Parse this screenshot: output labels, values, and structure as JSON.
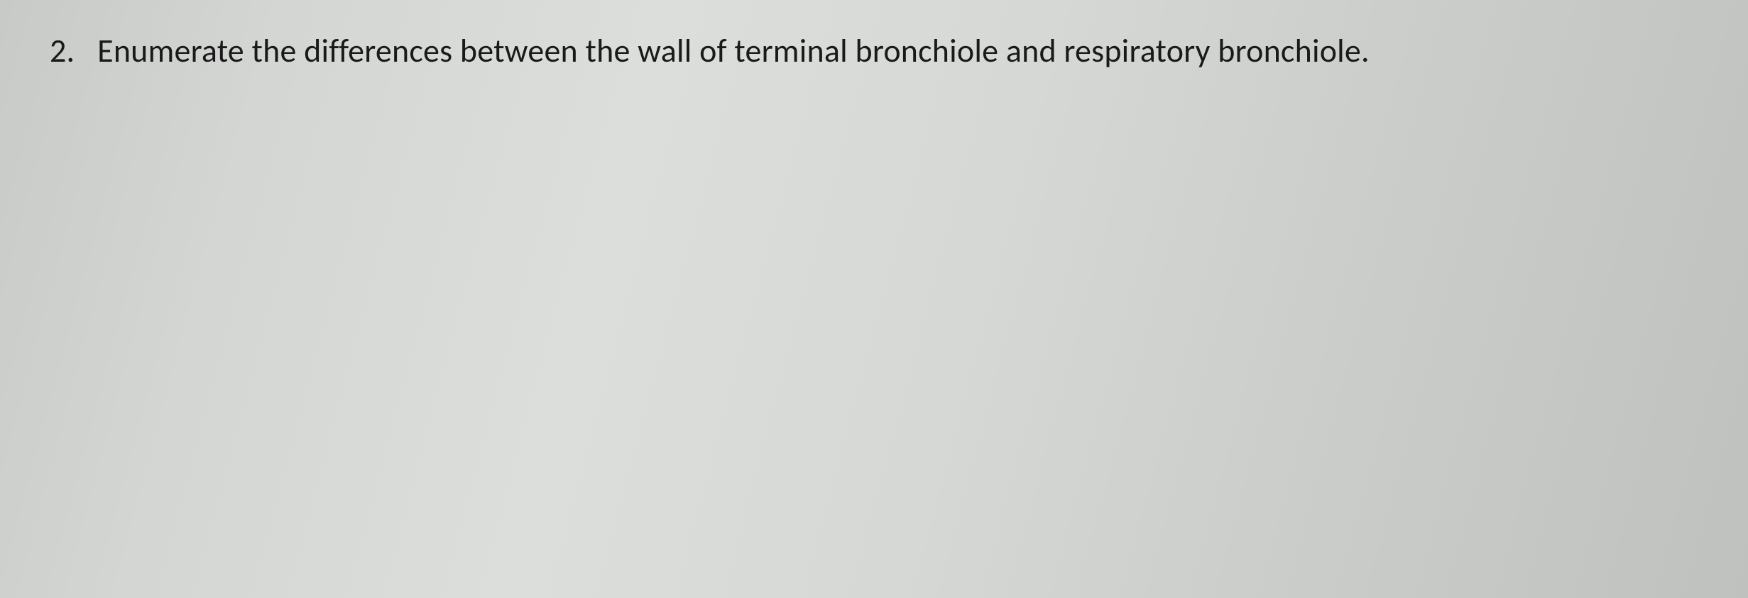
{
  "document": {
    "background_gradient": [
      "#c8cac8",
      "#d4d6d4",
      "#dcdedc",
      "#d6d8d6",
      "#cbcdcb",
      "#bfc1bf"
    ],
    "text_color": "#1a1a1a",
    "font_family": "Calibri",
    "font_size_pt": 34
  },
  "question": {
    "number": "2.",
    "text": "Enumerate the differences between the wall of terminal bronchiole and respiratory bronchiole."
  }
}
